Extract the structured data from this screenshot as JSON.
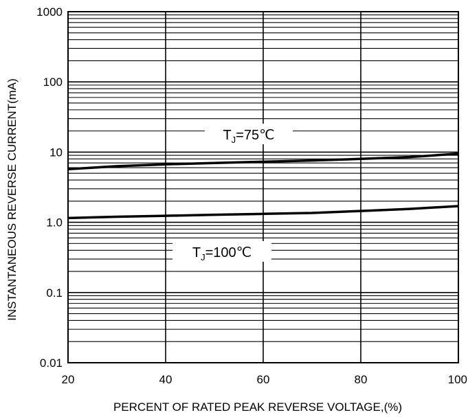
{
  "chart_data": {
    "type": "line",
    "xlabel": "PERCENT OF RATED PEAK REVERSE VOLTAGE,(%)",
    "ylabel": "INSTANTANEOUS REVERSE CURRENT(mA)",
    "xlim": [
      20,
      100
    ],
    "ylim": [
      0.01,
      1000
    ],
    "yscale": "log",
    "grid": true,
    "x_ticks": [
      20,
      40,
      60,
      80,
      100
    ],
    "x_tick_labels": [
      "20",
      "40",
      "60",
      "80",
      "100"
    ],
    "y_ticks": [
      0.01,
      0.1,
      1,
      10,
      100,
      1000
    ],
    "y_tick_labels": [
      "0.01",
      "0.1",
      "1.0",
      "10",
      "100",
      "1000"
    ],
    "series": [
      {
        "name_prefix": "T",
        "name_subscript": "J",
        "name_suffix": "=75℃",
        "x": [
          20,
          30,
          40,
          50,
          60,
          70,
          80,
          90,
          100
        ],
        "y": [
          5.7,
          6.3,
          6.7,
          7.0,
          7.3,
          7.6,
          8.0,
          8.5,
          9.5
        ]
      },
      {
        "name_prefix": "T",
        "name_subscript": "J",
        "name_suffix": "=100℃",
        "x": [
          20,
          30,
          40,
          50,
          60,
          70,
          80,
          90,
          100
        ],
        "y": [
          1.15,
          1.2,
          1.24,
          1.28,
          1.32,
          1.36,
          1.45,
          1.55,
          1.7
        ]
      }
    ],
    "colors": {
      "line": "#000000",
      "grid": "#000000",
      "background": "#ffffff"
    }
  }
}
